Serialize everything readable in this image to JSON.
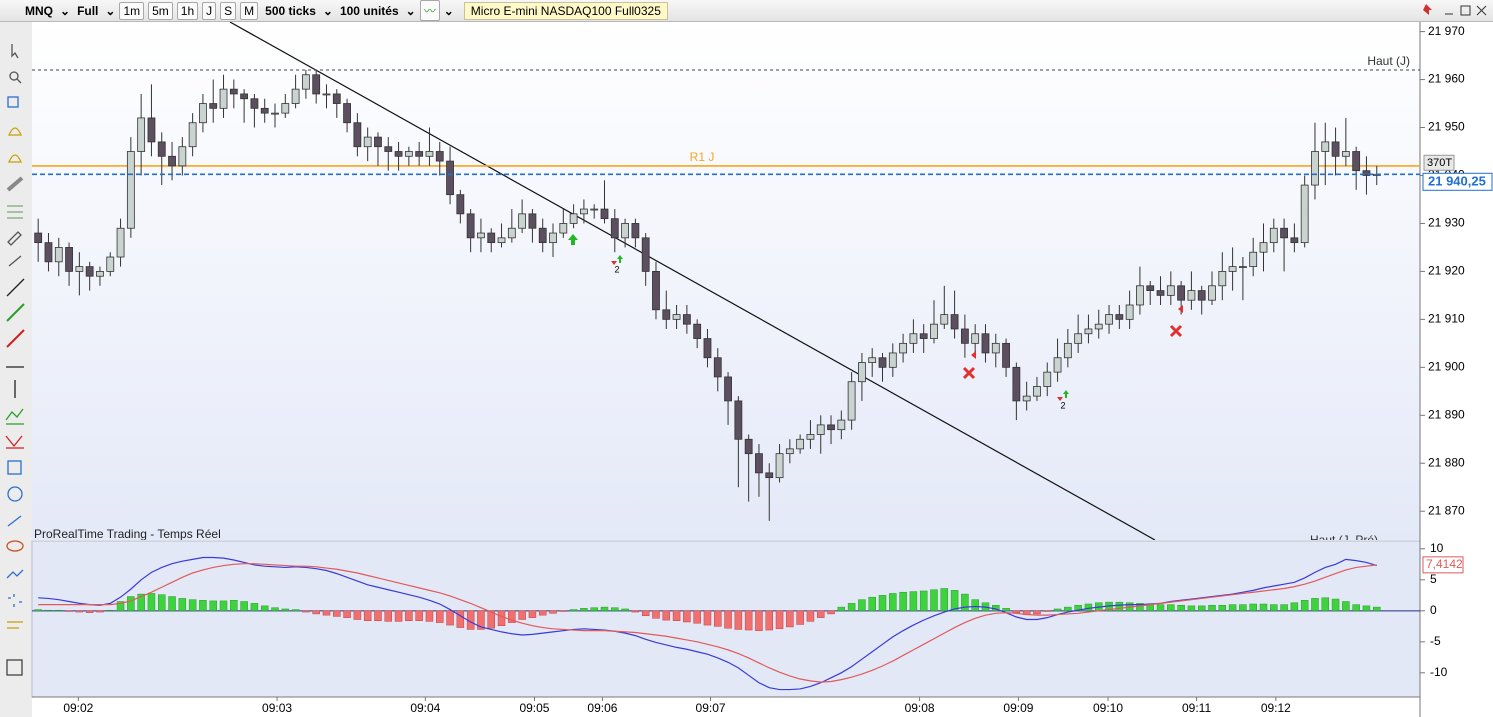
{
  "toolbar": {
    "symbol": "MNQ",
    "mode": "Full",
    "periods": [
      "1m",
      "5m",
      "1h",
      "J",
      "S",
      "M"
    ],
    "ticks": "500 ticks",
    "units": "100 unités",
    "instrument": "Micro E-mini NASDAQ100 Full0325"
  },
  "signals": {
    "labels": [
      2,
      2
    ]
  },
  "chart_data": [
    {
      "type": "candlestick",
      "source": "ProRealTime Trading - Temps Réel",
      "bar_counter": "370T",
      "up_color": "#c9d3cf",
      "down_color": "#5c5060",
      "ylim": [
        21864,
        21972
      ],
      "yticks": [
        {
          "value": 21870,
          "label": "21 870"
        },
        {
          "value": 21880,
          "label": "21 880"
        },
        {
          "value": 21890,
          "label": "21 890"
        },
        {
          "value": 21900,
          "label": "21 900"
        },
        {
          "value": 21910,
          "label": "21 910"
        },
        {
          "value": 21920,
          "label": "21 920"
        },
        {
          "value": 21930,
          "label": "21 930"
        },
        {
          "value": 21940,
          "label": "21 940"
        },
        {
          "value": 21950,
          "label": "21 950"
        },
        {
          "value": 21960,
          "label": "21 960"
        },
        {
          "value": 21970,
          "label": "21 970"
        }
      ],
      "xlim": [
        -0.6,
        134.2
      ],
      "xticks": [
        {
          "value": 3.9,
          "label": "09:02"
        },
        {
          "value": 23.2,
          "label": "09:03"
        },
        {
          "value": 37.6,
          "label": "09:04"
        },
        {
          "value": 48.2,
          "label": "09:05"
        },
        {
          "value": 54.8,
          "label": "09:06"
        },
        {
          "value": 65.3,
          "label": "09:07"
        },
        {
          "value": 85.6,
          "label": "09:08"
        },
        {
          "value": 95.2,
          "label": "09:09"
        },
        {
          "value": 103.9,
          "label": "09:10"
        },
        {
          "value": 112.5,
          "label": "09:11"
        },
        {
          "value": 120.2,
          "label": "09:12"
        }
      ],
      "levels": [
        {
          "label": "Haut (J)",
          "value": 21962,
          "color": "#444444",
          "style": "dotted"
        },
        {
          "label": "R1 J",
          "value": 21942,
          "color": "#f5a623",
          "style": "solid"
        }
      ],
      "off_chart_label": "Haut (J. Pré)",
      "last_price_label": "21 940,25",
      "last_price_color": "#1f6fd1",
      "open": [
        21928,
        21926,
        21922,
        21925,
        21920,
        21921,
        21919,
        21920,
        21923,
        21929,
        21945,
        21952,
        21947,
        21944,
        21942,
        21946,
        21951,
        21955,
        21954,
        21958,
        21957,
        21956,
        21954,
        21953,
        21953,
        21955,
        21958,
        21961,
        21957,
        21957,
        21955,
        21951,
        21946,
        21948,
        21946,
        21945,
        21944,
        21945,
        21944,
        21945,
        21943,
        21936,
        21932,
        21927,
        21928,
        21926,
        21927,
        21929,
        21932,
        21929,
        21926,
        21928,
        21930,
        21932,
        21933,
        21933,
        21931,
        21927,
        21930,
        21927,
        21920,
        21912,
        21910,
        21911,
        21909,
        21906,
        21902,
        21898,
        21893,
        21885,
        21882,
        21878,
        21877,
        21882,
        21883,
        21885,
        21886,
        21888,
        21887,
        21889,
        21897,
        21901,
        21902,
        21900,
        21903,
        21905,
        21907,
        21906,
        21909,
        21911,
        21908,
        21905,
        21907,
        21903,
        21905,
        21900,
        21893,
        21894,
        21896,
        21899,
        21902,
        21905,
        21907,
        21908,
        21909,
        21911,
        21910,
        21913,
        21917,
        21916,
        21915,
        21917,
        21914,
        21916,
        21914,
        21917,
        21920,
        21921,
        21921,
        21924,
        21926,
        21929,
        21927,
        21926,
        21938,
        21945,
        21947,
        21944,
        21945,
        21941,
        21940
      ],
      "high": [
        21931,
        21928,
        21927,
        21926,
        21924,
        21922,
        21921,
        21924,
        21931,
        21948,
        21957,
        21959,
        21949,
        21947,
        21948,
        21953,
        21957,
        21960,
        21961,
        21960,
        21958,
        21957,
        21956,
        21955,
        21957,
        21961,
        21962,
        21962,
        21959,
        21958,
        21956,
        21953,
        21950,
        21949,
        21948,
        21947,
        21946,
        21947,
        21950,
        21947,
        21946,
        21937,
        21933,
        21931,
        21929,
        21930,
        21933,
        21935,
        21933,
        21931,
        21930,
        21933,
        21934,
        21935,
        21934,
        21939,
        21933,
        21931,
        21931,
        21928,
        21922,
        21916,
        21913,
        21913,
        21910,
        21908,
        21904,
        21899,
        21894,
        21886,
        21884,
        21880,
        21884,
        21885,
        21886,
        21889,
        21890,
        21890,
        21891,
        21899,
        21903,
        21904,
        21903,
        21905,
        21907,
        21910,
        21909,
        21914,
        21917,
        21916,
        21911,
        21909,
        21909,
        21907,
        21906,
        21901,
        21897,
        21898,
        21901,
        21906,
        21908,
        21911,
        21911,
        21912,
        21913,
        21913,
        21916,
        21921,
        21918,
        21919,
        21920,
        21918,
        21920,
        21917,
        21920,
        21924,
        21925,
        21923,
        21927,
        21930,
        21931,
        21931,
        21930,
        21940,
        21951,
        21951,
        21950,
        21952,
        21946,
        21944,
        21942
      ],
      "low": [
        21922,
        21920,
        21919,
        21917,
        21915,
        21916,
        21917,
        21919,
        21921,
        21927,
        21940,
        21944,
        21938,
        21939,
        21940,
        21944,
        21949,
        21951,
        21952,
        21954,
        21951,
        21950,
        21951,
        21950,
        21952,
        21954,
        21956,
        21955,
        21954,
        21952,
        21949,
        21944,
        21943,
        21942,
        21941,
        21941,
        21942,
        21942,
        21942,
        21940,
        21934,
        21930,
        21924,
        21924,
        21924,
        21925,
        21926,
        21928,
        21926,
        21924,
        21923,
        21927,
        21929,
        21930,
        21931,
        21930,
        21924,
        21925,
        21925,
        21917,
        21910,
        21908,
        21908,
        21907,
        21904,
        21900,
        21895,
        21888,
        21875,
        21872,
        21873,
        21868,
        21876,
        21880,
        21882,
        21883,
        21882,
        21884,
        21885,
        21887,
        21893,
        21898,
        21897,
        21898,
        21901,
        21903,
        21903,
        21905,
        21908,
        21906,
        21902,
        21903,
        21901,
        21900,
        21898,
        21889,
        21891,
        21893,
        21894,
        21897,
        21900,
        21903,
        21905,
        21906,
        21907,
        21908,
        21908,
        21911,
        21913,
        21913,
        21913,
        21911,
        21912,
        21911,
        21913,
        21914,
        21916,
        21914,
        21919,
        21920,
        21924,
        21920,
        21924,
        21925,
        21935,
        21938,
        21940,
        21942,
        21937,
        21936,
        21938
      ],
      "close": [
        21926,
        21922,
        21925,
        21920,
        21921,
        21919,
        21920,
        21923,
        21929,
        21945,
        21952,
        21947,
        21944,
        21942,
        21946,
        21951,
        21955,
        21954,
        21958,
        21957,
        21956,
        21954,
        21953,
        21953,
        21955,
        21958,
        21961,
        21957,
        21957,
        21955,
        21951,
        21946,
        21948,
        21946,
        21945,
        21944,
        21945,
        21944,
        21945,
        21943,
        21936,
        21932,
        21927,
        21928,
        21926,
        21927,
        21929,
        21932,
        21929,
        21926,
        21928,
        21930,
        21932,
        21933,
        21933,
        21931,
        21927,
        21930,
        21927,
        21920,
        21912,
        21910,
        21911,
        21909,
        21906,
        21902,
        21898,
        21893,
        21885,
        21882,
        21878,
        21877,
        21882,
        21883,
        21885,
        21886,
        21888,
        21887,
        21889,
        21897,
        21901,
        21902,
        21900,
        21903,
        21905,
        21907,
        21906,
        21909,
        21911,
        21908,
        21905,
        21907,
        21903,
        21905,
        21900,
        21893,
        21894,
        21896,
        21899,
        21902,
        21905,
        21907,
        21908,
        21909,
        21911,
        21910,
        21913,
        21917,
        21916,
        21915,
        21917,
        21914,
        21916,
        21914,
        21917,
        21920,
        21921,
        21921,
        21924,
        21926,
        21929,
        21927,
        21926,
        21938,
        21945,
        21947,
        21944,
        21945,
        21941,
        21940,
        21940.25
      ]
    },
    {
      "type": "macd",
      "ylim": [
        -13.9,
        11.1
      ],
      "yticks": [
        10,
        5,
        0,
        -5,
        -10
      ],
      "zero_line": true,
      "series": [
        {
          "kind": "histogram",
          "pos_color": "#3fd23f",
          "neg_color": "#f07070",
          "values": [
            0.2,
            0.1,
            0.1,
            -0.1,
            -0.2,
            -0.3,
            -0.2,
            0.1,
            1.5,
            2.3,
            2.7,
            2.8,
            2.6,
            2.3,
            2.0,
            1.8,
            1.7,
            1.6,
            1.6,
            1.7,
            1.5,
            1.2,
            0.8,
            0.5,
            0.3,
            0.2,
            -0.2,
            -0.5,
            -0.7,
            -0.9,
            -1.1,
            -1.4,
            -1.6,
            -1.6,
            -1.7,
            -1.7,
            -1.6,
            -1.6,
            -1.7,
            -1.9,
            -2.3,
            -2.7,
            -3.0,
            -3.0,
            -2.8,
            -2.4,
            -1.9,
            -1.4,
            -1.1,
            -0.7,
            -0.4,
            -0.1,
            0.2,
            0.4,
            0.5,
            0.6,
            0.5,
            0.3,
            -0.2,
            -0.8,
            -1.2,
            -1.5,
            -1.6,
            -1.8,
            -2.0,
            -2.3,
            -2.5,
            -2.8,
            -3.0,
            -3.1,
            -3.2,
            -3.1,
            -2.9,
            -2.6,
            -2.2,
            -1.7,
            -1.1,
            -0.5,
            0.6,
            1.2,
            1.8,
            2.2,
            2.5,
            2.8,
            3.0,
            3.1,
            3.2,
            3.4,
            3.6,
            3.3,
            2.7,
            1.8,
            1.3,
            0.9,
            0.4,
            -0.3,
            -0.6,
            -0.5,
            -0.1,
            0.3,
            0.6,
            0.9,
            1.1,
            1.3,
            1.4,
            1.4,
            1.3,
            1.2,
            1.1,
            1.0,
            1.0,
            0.9,
            0.8,
            0.8,
            0.9,
            0.9,
            1.0,
            1.0,
            1.1,
            1.1,
            1.0,
            1.0,
            1.3,
            1.7,
            2.0,
            2.1,
            1.9,
            1.5,
            1.0,
            0.8,
            0.6
          ]
        },
        {
          "kind": "line",
          "color": "#3a3ad8",
          "values": [
            2.1,
            2.0,
            1.8,
            1.5,
            1.2,
            1.0,
            0.9,
            1.2,
            2.2,
            3.5,
            5.0,
            6.2,
            7.0,
            7.6,
            8.0,
            8.3,
            8.6,
            8.6,
            8.5,
            8.2,
            7.8,
            7.4,
            7.2,
            7.1,
            7.0,
            7.1,
            7.0,
            6.8,
            6.5,
            6.0,
            5.4,
            4.8,
            4.2,
            3.8,
            3.4,
            3.0,
            2.6,
            2.2,
            1.7,
            1.1,
            0.2,
            -0.8,
            -1.8,
            -2.6,
            -3.0,
            -3.4,
            -3.7,
            -3.9,
            -3.8,
            -3.6,
            -3.4,
            -3.2,
            -3.0,
            -2.9,
            -3.0,
            -3.1,
            -3.3,
            -3.6,
            -4.0,
            -4.6,
            -5.1,
            -5.5,
            -5.9,
            -6.2,
            -6.6,
            -7.0,
            -7.6,
            -8.3,
            -9.2,
            -10.4,
            -11.6,
            -12.4,
            -12.7,
            -12.7,
            -12.6,
            -12.2,
            -11.6,
            -10.8,
            -10.0,
            -9.0,
            -7.8,
            -6.6,
            -5.4,
            -4.2,
            -3.2,
            -2.3,
            -1.5,
            -0.8,
            -0.2,
            0.3,
            0.6,
            0.7,
            0.6,
            0.3,
            -0.3,
            -1.0,
            -1.4,
            -1.4,
            -1.1,
            -0.6,
            -0.2,
            0.1,
            0.4,
            0.6,
            0.8,
            0.9,
            1.0,
            1.0,
            1.1,
            1.2,
            1.5,
            1.7,
            1.9,
            2.1,
            2.3,
            2.5,
            2.7,
            3.0,
            3.3,
            3.7,
            4.0,
            4.3,
            4.6,
            5.3,
            6.2,
            7.0,
            7.5,
            8.3,
            8.1,
            7.8,
            7.3
          ]
        },
        {
          "kind": "line",
          "color": "#e05a5a",
          "last_label": "7,4142",
          "values": [
            1.0,
            1.0,
            1.0,
            1.0,
            1.0,
            1.0,
            1.0,
            1.0,
            1.2,
            1.6,
            2.3,
            3.0,
            3.8,
            4.6,
            5.4,
            6.1,
            6.6,
            7.0,
            7.3,
            7.5,
            7.6,
            7.6,
            7.5,
            7.4,
            7.3,
            7.2,
            7.2,
            7.1,
            6.9,
            6.7,
            6.4,
            6.1,
            5.7,
            5.3,
            4.9,
            4.5,
            4.1,
            3.7,
            3.3,
            2.9,
            2.4,
            1.8,
            1.2,
            0.5,
            -0.2,
            -0.9,
            -1.5,
            -2.0,
            -2.4,
            -2.7,
            -2.9,
            -3.0,
            -3.1,
            -3.2,
            -3.2,
            -3.2,
            -3.3,
            -3.4,
            -3.5,
            -3.7,
            -3.9,
            -4.1,
            -4.4,
            -4.7,
            -5.0,
            -5.4,
            -5.8,
            -6.3,
            -6.9,
            -7.6,
            -8.4,
            -9.2,
            -9.9,
            -10.5,
            -11.0,
            -11.3,
            -11.5,
            -11.4,
            -11.1,
            -10.7,
            -10.2,
            -9.6,
            -8.9,
            -8.1,
            -7.2,
            -6.3,
            -5.4,
            -4.5,
            -3.6,
            -2.7,
            -1.9,
            -1.2,
            -0.7,
            -0.4,
            -0.3,
            -0.4,
            -0.6,
            -0.7,
            -0.7,
            -0.6,
            -0.5,
            -0.4,
            -0.2,
            0,
            0.2,
            0.4,
            0.6,
            0.8,
            1.0,
            1.2,
            1.4,
            1.6,
            1.8,
            2.0,
            2.2,
            2.4,
            2.6,
            2.8,
            3.0,
            3.2,
            3.4,
            3.6,
            3.9,
            4.3,
            4.8,
            5.4,
            6.0,
            6.6,
            7.0,
            7.2,
            7.4142
          ]
        }
      ]
    }
  ]
}
